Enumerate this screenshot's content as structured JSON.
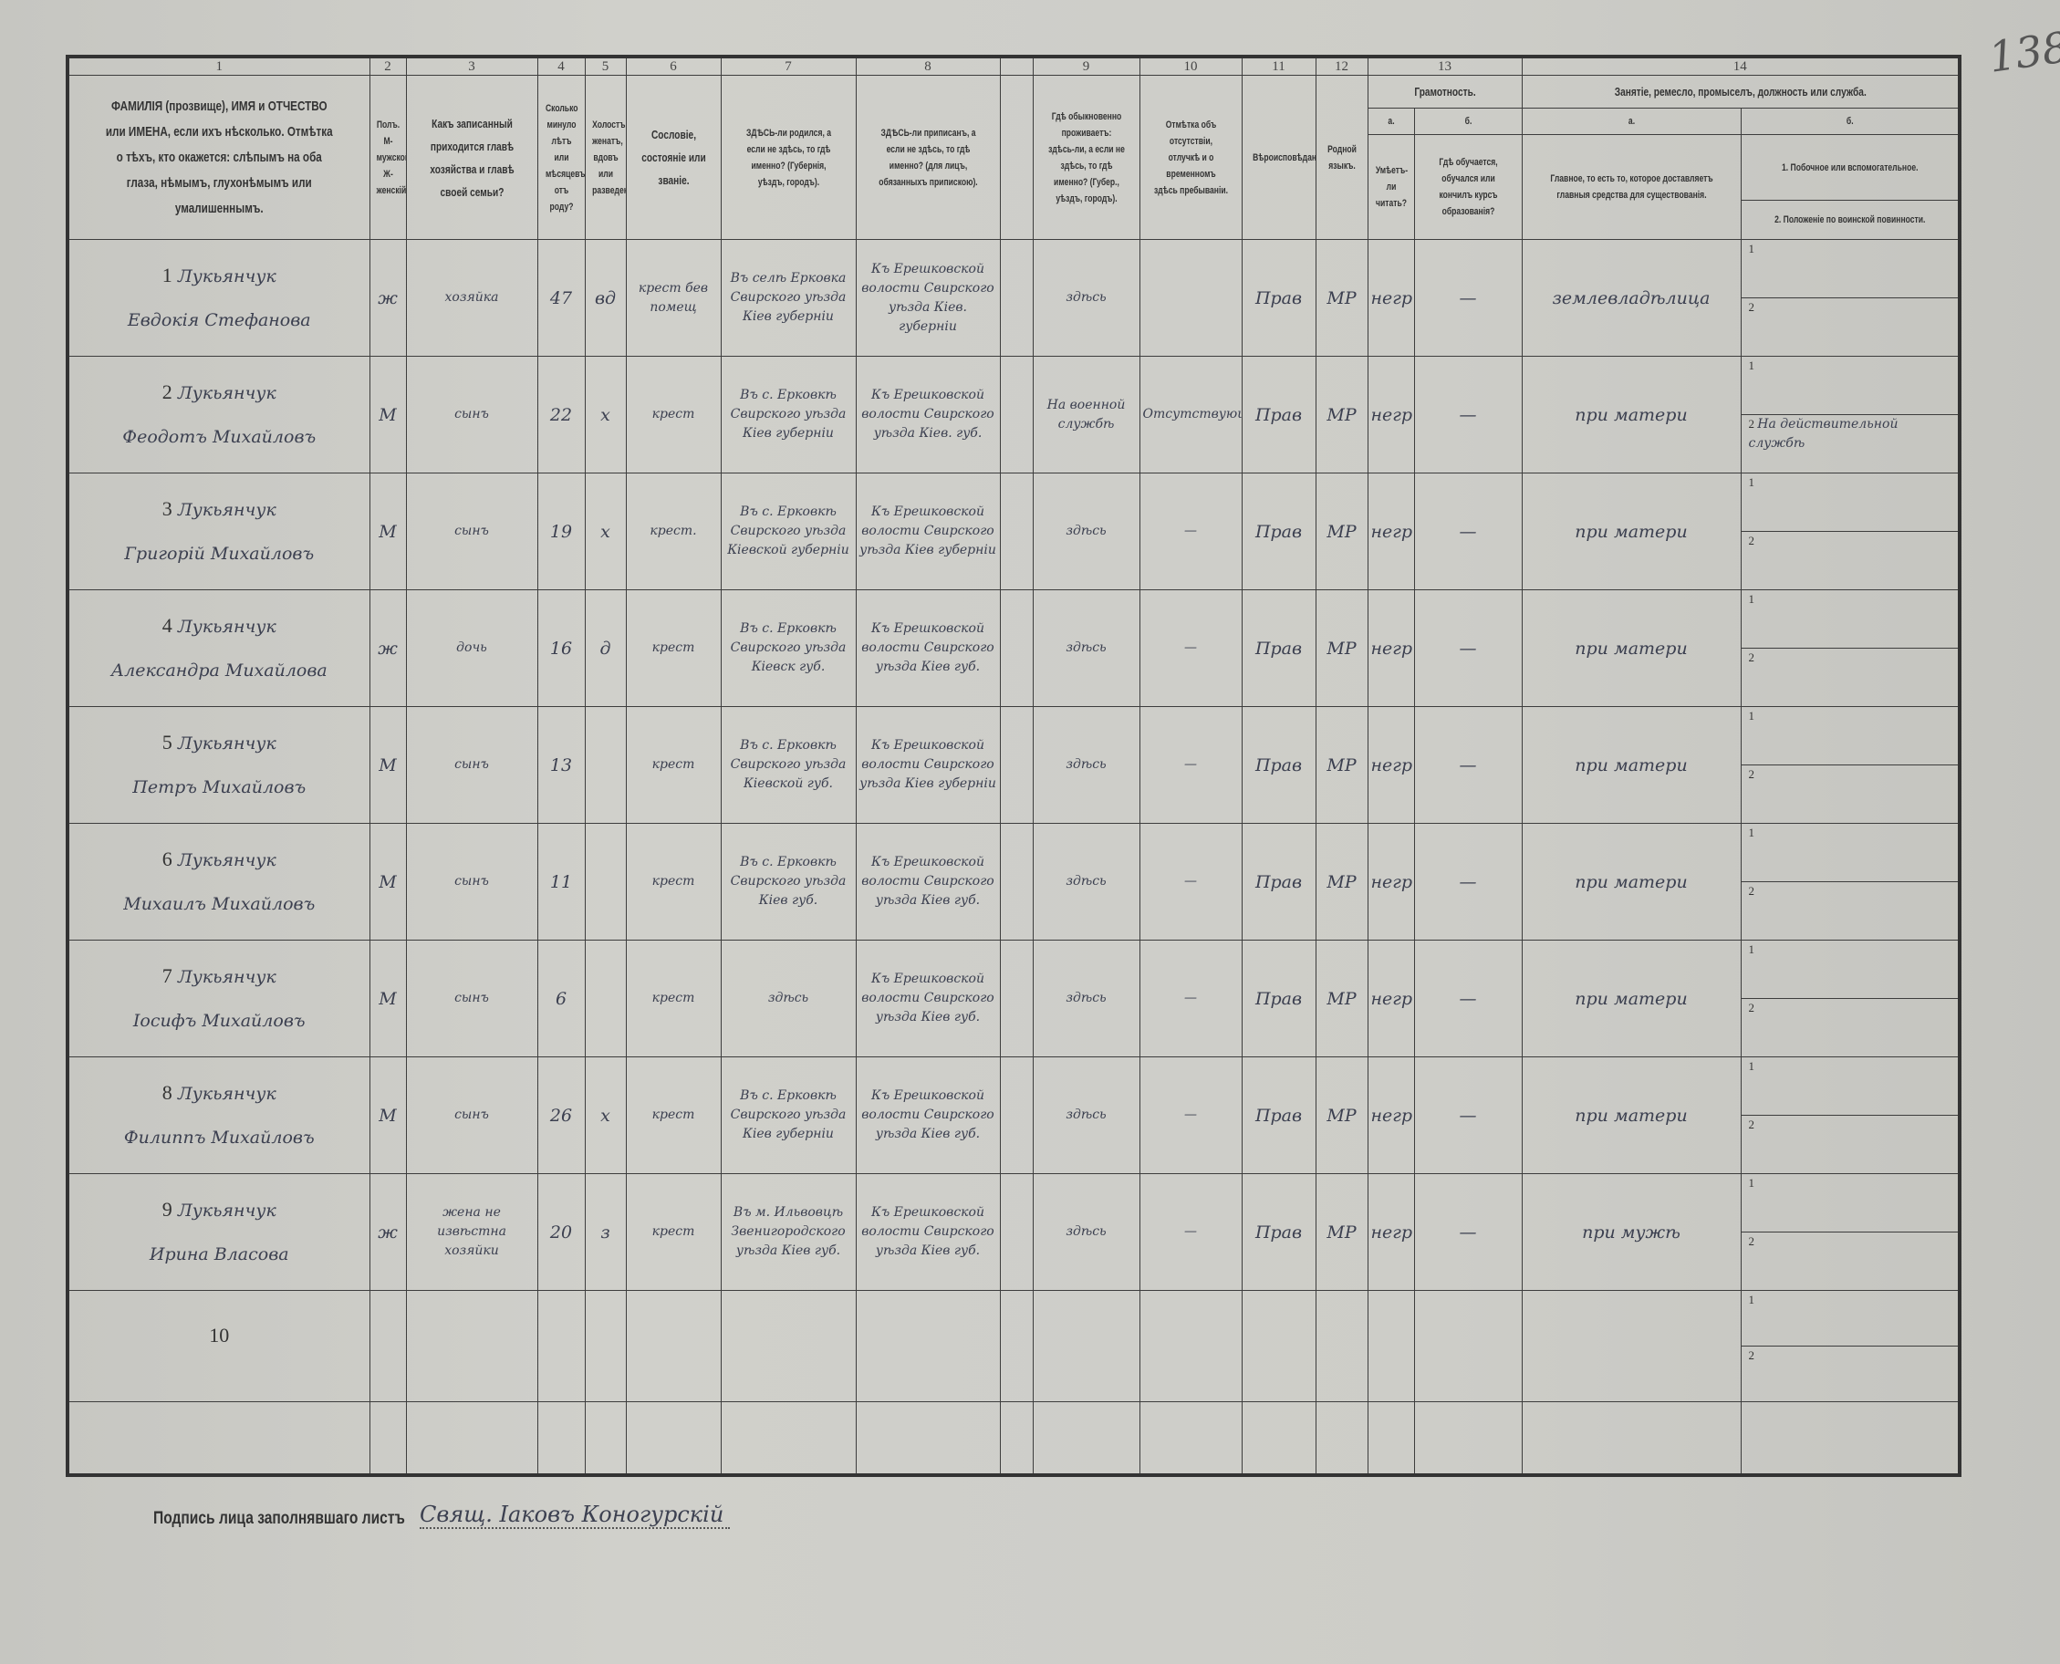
{
  "page_number": "138",
  "header": {
    "col_numbers": [
      "1",
      "2",
      "3",
      "4",
      "5",
      "6",
      "7",
      "8",
      "",
      "9",
      "10",
      "11",
      "12",
      "13",
      "14"
    ],
    "c1": "ФАМИЛІЯ (прозвище), ИМЯ и ОТЧЕСТВО или ИМЕНА, если ихъ нѣсколько. Отмѣтка о тѣхъ, кто окажется: слѣпымъ на оба глаза, нѣмымъ, глухонѣмымъ или умалишеннымъ.",
    "c2": "Полъ. М-мужской. Ж-женскій.",
    "c3": "Какъ записанный приходится главѣ хозяйства и главѣ своей семьи?",
    "c4": "Сколько минуло лѣтъ или мѣсяцевъ отъ роду?",
    "c5": "Холостъ, женатъ, вдовъ или разведенъ.",
    "c6": "Сословіе, состояніе или званіе.",
    "c7": "ЗДѢСЬ-ли родился, а если не здѣсь, то гдѣ именно? (Губернія, уѣздъ, городъ).",
    "c8": "ЗДѢСЬ-ли приписанъ, а если не здѣсь, то гдѣ именно? (для лицъ, обязанныхъ припискою).",
    "c9": "Гдѣ обыкновенно проживаетъ: здѣсь-ли, а если не здѣсь, то гдѣ именно? (Губер., уѣздъ, городъ).",
    "c10": "Отмѣтка объ отсутствіи, отлучкѣ и о временномъ здѣсь пребываніи.",
    "c11": "Вѣроисповѣданіе.",
    "c12": "Родной языкъ.",
    "c13": "Грамотность.",
    "c13a": "а.",
    "c13b": "б.",
    "c13a_text": "Умѣетъ-ли читать?",
    "c13b_text": "Гдѣ обучается, обучался или кончилъ курсъ образованія?",
    "c14": "Занятіе, ремесло, промыселъ, должность или служба.",
    "c14a": "а.",
    "c14b": "б.",
    "c14a_text": "Главное, то есть то, которое доставляетъ главныя средства для существованія.",
    "c14b1": "1. Побочное или вспомогательное.",
    "c14b2": "2. Положеніе по воинской повинности."
  },
  "rows": [
    {
      "num": "1",
      "surname": "Лукьянчук",
      "name": "Евдокія Стефанова",
      "sex": "ж",
      "relation": "хозяйка",
      "age": "47",
      "marital": "вд",
      "estate": "крест бев помещ",
      "born": "Въ селѣ Ерковка Свирского уѣзда Кіев губерніи",
      "registered": "Къ Ерешковской волости Свирского уѣзда Кіев. губерніи",
      "residence": "здѣсь",
      "absence": "",
      "religion": "Прав",
      "language": "МР",
      "literacy": "негр",
      "education": "—",
      "occupation": "землевладѣлица",
      "secondary": "",
      "military": ""
    },
    {
      "num": "2",
      "surname": "Лукьянчук",
      "name": "Феодотъ Михайловъ",
      "sex": "М",
      "relation": "сынъ",
      "age": "22",
      "marital": "х",
      "estate": "крест",
      "born": "Въ с. Ерковкѣ Свирского уѣзда Кіев губерніи",
      "registered": "Къ Ерешковской волости Свирского уѣзда Кіев. губ.",
      "residence": "На военной службѣ",
      "absence": "Отсутствующій",
      "religion": "Прав",
      "language": "МР",
      "literacy": "негр",
      "education": "—",
      "occupation": "при матери",
      "secondary": "",
      "military": "На действительной службѣ"
    },
    {
      "num": "3",
      "surname": "Лукьянчук",
      "name": "Григорій Михайловъ",
      "sex": "М",
      "relation": "сынъ",
      "age": "19",
      "marital": "х",
      "estate": "крест.",
      "born": "Въ с. Ерковкѣ Свирского уѣзда Кіевской губерніи",
      "registered": "Къ Ерешковской волости Свирского уѣзда Кіев губерніи",
      "residence": "здѣсь",
      "absence": "—",
      "religion": "Прав",
      "language": "МР",
      "literacy": "негр",
      "education": "—",
      "occupation": "при матери",
      "secondary": "",
      "military": ""
    },
    {
      "num": "4",
      "surname": "Лукьянчук",
      "name": "Александра Михайлова",
      "sex": "ж",
      "relation": "дочь",
      "age": "16",
      "marital": "д",
      "estate": "крест",
      "born": "Въ с. Ерковкѣ Свирского уѣзда Кіевск губ.",
      "registered": "Къ Ерешковской волости Свирского уѣзда Кіев губ.",
      "residence": "здѣсь",
      "absence": "—",
      "religion": "Прав",
      "language": "МР",
      "literacy": "негр",
      "education": "—",
      "occupation": "при матери",
      "secondary": "",
      "military": ""
    },
    {
      "num": "5",
      "surname": "Лукьянчук",
      "name": "Петръ Михайловъ",
      "sex": "М",
      "relation": "сынъ",
      "age": "13",
      "marital": "",
      "estate": "крест",
      "born": "Въ с. Ерковкѣ Свирского уѣзда Кіевской губ.",
      "registered": "Къ Ерешковской волости Свирского уѣзда Кіев губерніи",
      "residence": "здѣсь",
      "absence": "—",
      "religion": "Прав",
      "language": "МР",
      "literacy": "негр",
      "education": "—",
      "occupation": "при матери",
      "secondary": "",
      "military": ""
    },
    {
      "num": "6",
      "surname": "Лукьянчук",
      "name": "Михаилъ Михайловъ",
      "sex": "М",
      "relation": "сынъ",
      "age": "11",
      "marital": "",
      "estate": "крест",
      "born": "Въ с. Ерковкѣ Свирского уѣзда Кіев губ.",
      "registered": "Къ Ерешковской волости Свирского уѣзда Кіев губ.",
      "residence": "здѣсь",
      "absence": "—",
      "religion": "Прав",
      "language": "МР",
      "literacy": "негр",
      "education": "—",
      "occupation": "при матери",
      "secondary": "",
      "military": ""
    },
    {
      "num": "7",
      "surname": "Лукьянчук",
      "name": "Іосифъ Михайловъ",
      "sex": "М",
      "relation": "сынъ",
      "age": "6",
      "marital": "",
      "estate": "крест",
      "born": "здѣсь",
      "registered": "Къ Ерешковской волости Свирского уѣзда Кіев губ.",
      "residence": "здѣсь",
      "absence": "—",
      "religion": "Прав",
      "language": "МР",
      "literacy": "негр",
      "education": "—",
      "occupation": "при матери",
      "secondary": "",
      "military": ""
    },
    {
      "num": "8",
      "surname": "Лукьянчук",
      "name": "Филиппъ Михайловъ",
      "sex": "М",
      "relation": "сынъ",
      "age": "26",
      "marital": "х",
      "estate": "крест",
      "born": "Въ с. Ерковкѣ Свирского уѣзда Кіев губерніи",
      "registered": "Къ Ерешковской волости Свирского уѣзда Кіев губ.",
      "residence": "здѣсь",
      "absence": "—",
      "religion": "Прав",
      "language": "МР",
      "literacy": "негр",
      "education": "—",
      "occupation": "при матери",
      "secondary": "",
      "military": ""
    },
    {
      "num": "9",
      "surname": "Лукьянчук",
      "name": "Ирина Власова",
      "sex": "ж",
      "relation": "жена не извѣстна хозяйки",
      "age": "20",
      "marital": "з",
      "estate": "крест",
      "born": "Въ м. Ильвовцѣ Звенигородского уѣзда Кіев губ.",
      "registered": "Къ Ерешковской волости Свирского уѣзда Кіев губ.",
      "residence": "здѣсь",
      "absence": "—",
      "religion": "Прав",
      "language": "МР",
      "literacy": "негр",
      "education": "—",
      "occupation": "при мужѣ",
      "secondary": "",
      "military": ""
    },
    {
      "num": "10",
      "surname": "",
      "name": "",
      "sex": "",
      "relation": "",
      "age": "",
      "marital": "",
      "estate": "",
      "born": "",
      "registered": "",
      "residence": "",
      "absence": "",
      "religion": "",
      "language": "",
      "literacy": "",
      "education": "",
      "occupation": "",
      "secondary": "",
      "military": ""
    }
  ],
  "sub_labels": [
    "1",
    "2"
  ],
  "signature": {
    "label": "Подпись лица заполнявшаго листъ",
    "value": "Свящ. Іаковъ Коногурскій"
  }
}
